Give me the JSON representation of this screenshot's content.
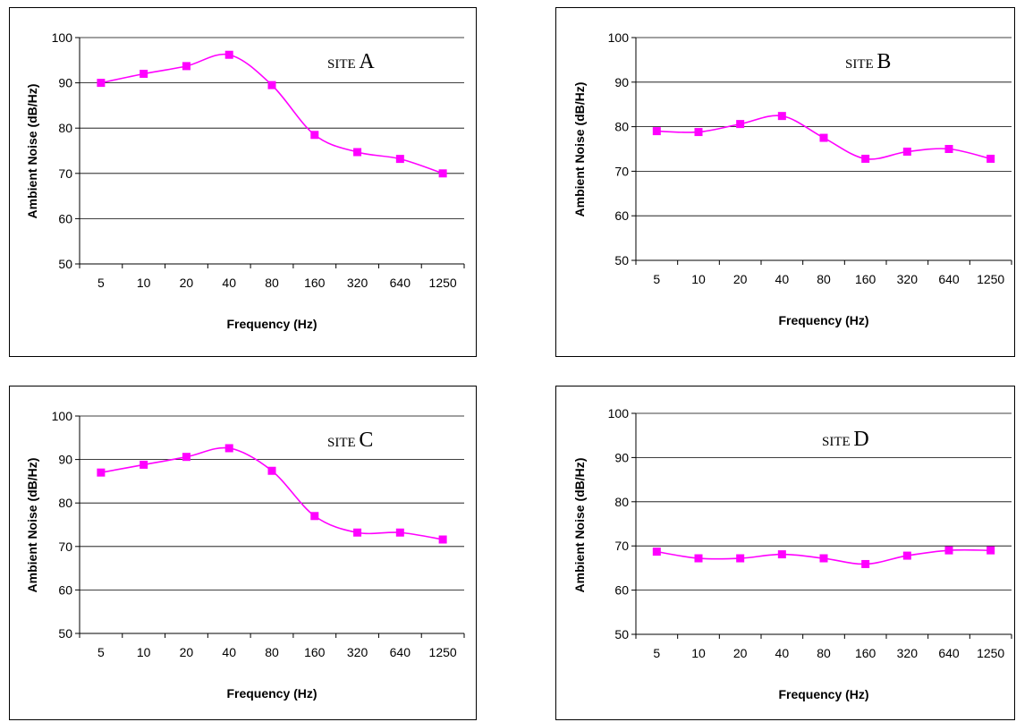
{
  "chart_data": [
    {
      "type": "line",
      "site_prefix": "SITE",
      "site_letter": "A",
      "categories": [
        "5",
        "10",
        "20",
        "40",
        "80",
        "160",
        "320",
        "640",
        "1250"
      ],
      "values": [
        90,
        92,
        93.7,
        96.2,
        89.5,
        78.5,
        74.7,
        73.2,
        70
      ],
      "xlabel": "Frequency (Hz)",
      "ylabel": "Ambient Noise (dB/Hz)",
      "ylim": [
        50,
        100
      ],
      "yticks": [
        50,
        60,
        70,
        80,
        90,
        100
      ],
      "grid": true,
      "line_color": "#ff00ff",
      "marker": "square"
    },
    {
      "type": "line",
      "site_prefix": "SITE",
      "site_letter": "B",
      "categories": [
        "5",
        "10",
        "20",
        "40",
        "80",
        "160",
        "320",
        "640",
        "1250"
      ],
      "values": [
        79,
        78.8,
        80.6,
        82.4,
        77.5,
        72.8,
        74.4,
        75,
        72.8
      ],
      "xlabel": "Frequency (Hz)",
      "ylabel": "Ambient Noise (dB/Hz)",
      "ylim": [
        50,
        100
      ],
      "yticks": [
        50,
        60,
        70,
        80,
        90,
        100
      ],
      "grid": true,
      "line_color": "#ff00ff",
      "marker": "square"
    },
    {
      "type": "line",
      "site_prefix": "SITE",
      "site_letter": "C",
      "categories": [
        "5",
        "10",
        "20",
        "40",
        "80",
        "160",
        "320",
        "640",
        "1250"
      ],
      "values": [
        87,
        88.8,
        90.6,
        92.6,
        87.4,
        77,
        73.2,
        73.2,
        71.6
      ],
      "xlabel": "Frequency (Hz)",
      "ylabel": "Ambient Noise (dB/Hz)",
      "ylim": [
        50,
        100
      ],
      "yticks": [
        50,
        60,
        70,
        80,
        90,
        100
      ],
      "grid": true,
      "line_color": "#ff00ff",
      "marker": "square"
    },
    {
      "type": "line",
      "site_prefix": "SITE",
      "site_letter": "D",
      "categories": [
        "5",
        "10",
        "20",
        "40",
        "80",
        "160",
        "320",
        "640",
        "1250"
      ],
      "values": [
        68.7,
        67.2,
        67.2,
        68.1,
        67.2,
        65.9,
        67.8,
        69,
        69
      ],
      "xlabel": "Frequency (Hz)",
      "ylabel": "Ambient Noise (dB/Hz)",
      "ylim": [
        50,
        100
      ],
      "yticks": [
        50,
        60,
        70,
        80,
        90,
        100
      ],
      "grid": true,
      "line_color": "#ff00ff",
      "marker": "square"
    }
  ]
}
